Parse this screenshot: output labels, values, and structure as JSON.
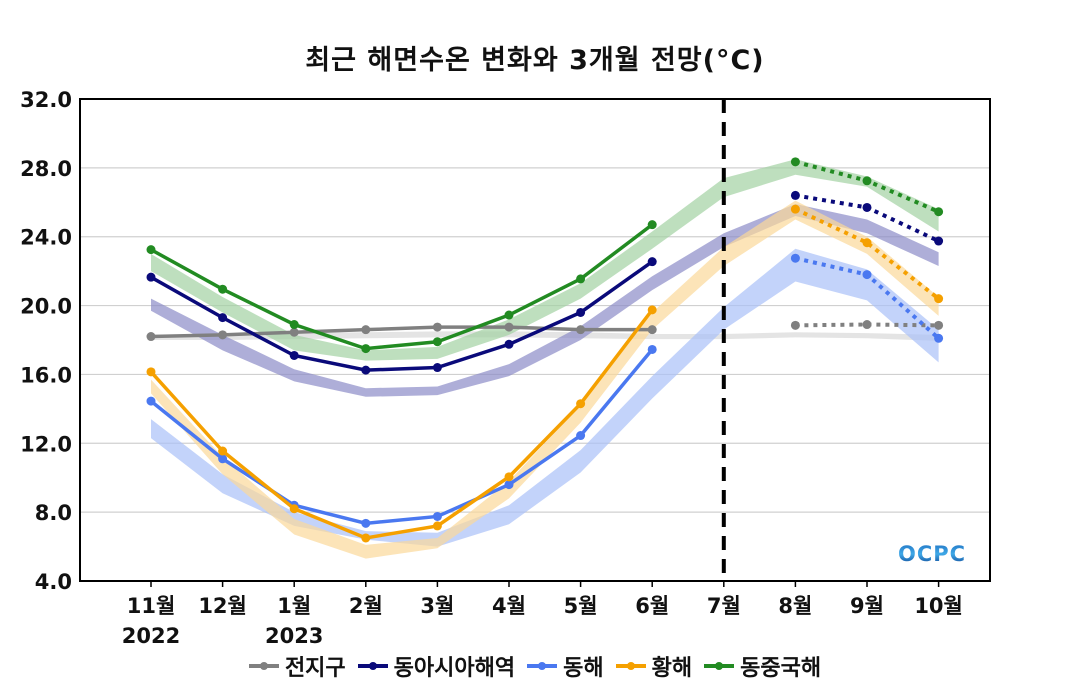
{
  "chart_data": {
    "type": "line",
    "title": "최근 해면수온 변화와 3개월 전망(°C)",
    "xlabel": "",
    "ylabel": "",
    "ylim": [
      4.0,
      32.0
    ],
    "yticks": [
      "4.0",
      "8.0",
      "12.0",
      "16.0",
      "20.0",
      "24.0",
      "28.0",
      "32.0"
    ],
    "ytick_values": [
      4,
      8,
      12,
      16,
      20,
      24,
      28,
      32
    ],
    "categories": [
      "11월",
      "12월",
      "1월",
      "2월",
      "3월",
      "4월",
      "5월",
      "6월",
      "7월",
      "8월",
      "9월",
      "10월"
    ],
    "year_labels": [
      {
        "index": 0,
        "label": "2022"
      },
      {
        "index": 2,
        "label": "2023"
      }
    ],
    "forecast_divider_index": 8,
    "observed_range": [
      0,
      7
    ],
    "forecast_range": [
      9,
      11
    ],
    "grid": true,
    "legend_position": "bottom",
    "logo_text": "OCPC",
    "series": [
      {
        "name": "전지구",
        "color": "#808080",
        "band_color": "#d9d9d9",
        "values": [
          18.2,
          18.3,
          18.45,
          18.6,
          18.75,
          18.75,
          18.6,
          18.6,
          null,
          18.85,
          18.9,
          18.85
        ],
        "band_low": [
          18.0,
          18.0,
          18.05,
          18.1,
          18.15,
          18.15,
          18.1,
          18.05,
          18.05,
          18.15,
          18.1,
          17.95
        ],
        "band_high": [
          18.3,
          18.35,
          18.4,
          18.45,
          18.5,
          18.5,
          18.45,
          18.35,
          18.35,
          18.45,
          18.4,
          18.3
        ]
      },
      {
        "name": "동아시아해역",
        "color": "#0a0a7a",
        "band_color": "#8c8cc8",
        "values": [
          21.65,
          19.3,
          17.1,
          16.25,
          16.4,
          17.75,
          19.6,
          22.55,
          null,
          26.4,
          25.7,
          23.75
        ],
        "band_low": [
          19.7,
          17.4,
          15.6,
          14.7,
          14.8,
          15.9,
          18.0,
          20.9,
          23.4,
          25.2,
          24.2,
          22.3
        ],
        "band_high": [
          20.4,
          18.3,
          16.3,
          15.2,
          15.3,
          16.6,
          18.8,
          21.7,
          24.2,
          25.9,
          25.0,
          23.1
        ]
      },
      {
        "name": "동해",
        "color": "#4a78f0",
        "band_color": "#a9c0f8",
        "values": [
          14.45,
          11.1,
          8.4,
          7.35,
          7.75,
          9.6,
          12.45,
          17.45,
          null,
          22.75,
          21.8,
          18.1
        ],
        "band_low": [
          12.3,
          9.1,
          7.2,
          6.4,
          6.0,
          7.3,
          10.3,
          14.6,
          18.6,
          21.4,
          20.3,
          16.7
        ],
        "band_high": [
          13.4,
          10.2,
          8.0,
          6.9,
          6.8,
          8.4,
          11.6,
          15.9,
          19.9,
          23.3,
          22.1,
          18.6
        ]
      },
      {
        "name": "황해",
        "color": "#f5a000",
        "band_color": "#fbd89a",
        "values": [
          16.15,
          11.55,
          8.2,
          6.5,
          7.2,
          10.05,
          14.3,
          19.75,
          null,
          25.6,
          23.65,
          20.4
        ],
        "band_low": [
          14.9,
          10.2,
          6.7,
          5.3,
          5.9,
          8.8,
          13.2,
          18.6,
          22.3,
          25.0,
          23.0,
          19.4
        ],
        "band_high": [
          15.7,
          11.2,
          7.6,
          6.1,
          6.5,
          9.8,
          14.2,
          19.6,
          23.4,
          26.1,
          24.0,
          20.5
        ]
      },
      {
        "name": "동중국해",
        "color": "#228b22",
        "band_color": "#a3d2a3",
        "values": [
          23.25,
          20.95,
          18.9,
          17.5,
          17.9,
          19.45,
          21.55,
          24.7,
          null,
          28.35,
          27.25,
          25.45
        ],
        "band_low": [
          22.0,
          19.6,
          17.4,
          16.8,
          16.9,
          18.3,
          20.4,
          23.3,
          26.3,
          27.6,
          26.9,
          24.3
        ],
        "band_high": [
          23.0,
          20.5,
          18.3,
          17.4,
          17.6,
          19.2,
          21.3,
          24.3,
          27.4,
          28.5,
          27.5,
          25.6
        ]
      }
    ]
  }
}
